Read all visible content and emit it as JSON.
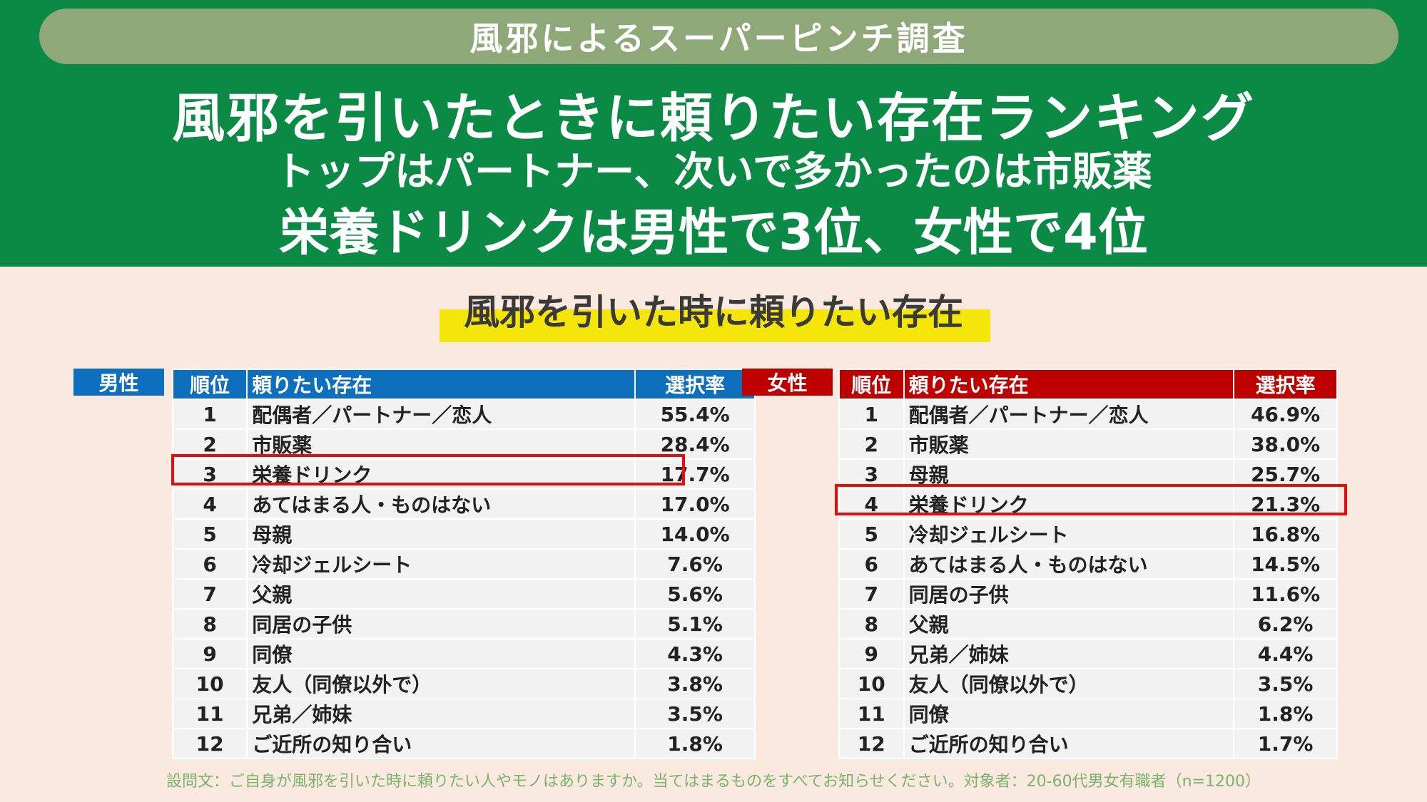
{
  "banner": {
    "title": "風邪によるスーパーピンチ調査"
  },
  "headlines": {
    "line1": "風邪を引いたときに頼りたい存在ランキング",
    "line2": "トップはパートナー、次いで多かったのは市販薬",
    "line3": "栄養ドリンクは男性で3位、女性で4位"
  },
  "section": {
    "title": "風邪を引いた時に頼りたい存在"
  },
  "colors": {
    "green": "#0b8a45",
    "male": "#0f6fbf",
    "female": "#bf0000",
    "highlight": "#e01010"
  },
  "male": {
    "label": "男性",
    "headers": {
      "rank": "順位",
      "name": "頼りたい存在",
      "rate": "選択率"
    },
    "rows": [
      {
        "rank": "1",
        "name": "配偶者／パートナー／恋人",
        "rate": "55.4%"
      },
      {
        "rank": "2",
        "name": "市販薬",
        "rate": "28.4%"
      },
      {
        "rank": "3",
        "name": "栄養ドリンク",
        "rate": "17.7%"
      },
      {
        "rank": "4",
        "name": "あてはまる人・ものはない",
        "rate": "17.0%"
      },
      {
        "rank": "5",
        "name": "母親",
        "rate": "14.0%"
      },
      {
        "rank": "6",
        "name": "冷却ジェルシート",
        "rate": "7.6%"
      },
      {
        "rank": "7",
        "name": "父親",
        "rate": "5.6%"
      },
      {
        "rank": "8",
        "name": "同居の子供",
        "rate": "5.1%"
      },
      {
        "rank": "9",
        "name": "同僚",
        "rate": "4.3%"
      },
      {
        "rank": "10",
        "name": "友人（同僚以外で）",
        "rate": "3.8%"
      },
      {
        "rank": "11",
        "name": "兄弟／姉妹",
        "rate": "3.5%"
      },
      {
        "rank": "12",
        "name": "ご近所の知り合い",
        "rate": "1.8%"
      }
    ]
  },
  "female": {
    "label": "女性",
    "headers": {
      "rank": "順位",
      "name": "頼りたい存在",
      "rate": "選択率"
    },
    "rows": [
      {
        "rank": "1",
        "name": "配偶者／パートナー／恋人",
        "rate": "46.9%"
      },
      {
        "rank": "2",
        "name": "市販薬",
        "rate": "38.0%"
      },
      {
        "rank": "3",
        "name": "母親",
        "rate": "25.7%"
      },
      {
        "rank": "4",
        "name": "栄養ドリンク",
        "rate": "21.3%"
      },
      {
        "rank": "5",
        "name": "冷却ジェルシート",
        "rate": "16.8%"
      },
      {
        "rank": "6",
        "name": "あてはまる人・ものはない",
        "rate": "14.5%"
      },
      {
        "rank": "7",
        "name": "同居の子供",
        "rate": "11.6%"
      },
      {
        "rank": "8",
        "name": "父親",
        "rate": "6.2%"
      },
      {
        "rank": "9",
        "name": "兄弟／姉妹",
        "rate": "4.4%"
      },
      {
        "rank": "10",
        "name": "友人（同僚以外で）",
        "rate": "3.5%"
      },
      {
        "rank": "11",
        "name": "同僚",
        "rate": "1.8%"
      },
      {
        "rank": "12",
        "name": "ご近所の知り合い",
        "rate": "1.7%"
      }
    ]
  },
  "footnote": "設問文：ご自身が風邪を引いた時に頼りたい人やモノはありますか。当てはまるものをすべてお知らせください。対象者：20-60代男女有職者（n=1200）"
}
